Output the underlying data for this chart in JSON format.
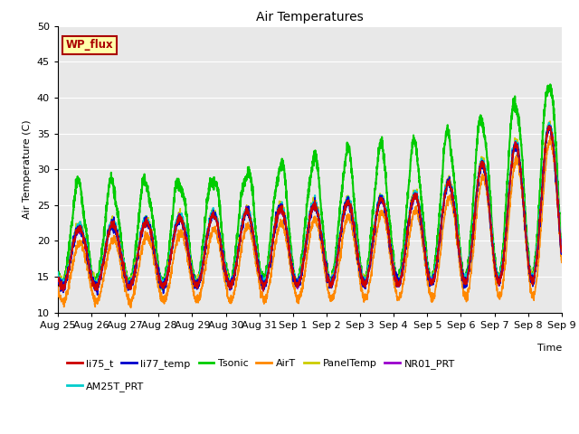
{
  "title": "Air Temperatures",
  "xlabel": "Time",
  "ylabel": "Air Temperature (C)",
  "ylim": [
    10,
    50
  ],
  "tick_labels": [
    "Aug 25",
    "Aug 26",
    "Aug 27",
    "Aug 28",
    "Aug 29",
    "Aug 30",
    "Aug 31",
    "Sep 1",
    "Sep 2",
    "Sep 3",
    "Sep 4",
    "Sep 5",
    "Sep 6",
    "Sep 7",
    "Sep 8",
    "Sep 9"
  ],
  "tick_positions": [
    0,
    1,
    2,
    3,
    4,
    5,
    6,
    7,
    8,
    9,
    10,
    11,
    12,
    13,
    14,
    15
  ],
  "series": {
    "li75_t": {
      "color": "#cc0000",
      "lw": 1.2
    },
    "li77_temp": {
      "color": "#0000cc",
      "lw": 1.2
    },
    "Tsonic": {
      "color": "#00cc00",
      "lw": 1.5
    },
    "AirT": {
      "color": "#ff8800",
      "lw": 1.2
    },
    "PanelTemp": {
      "color": "#cccc00",
      "lw": 1.2
    },
    "NR01_PRT": {
      "color": "#9900cc",
      "lw": 1.2
    },
    "AM25T_PRT": {
      "color": "#00cccc",
      "lw": 1.5
    }
  },
  "wp_flux_box": {
    "text": "WP_flux",
    "facecolor": "#ffffaa",
    "edgecolor": "#aa0000",
    "textcolor": "#aa0000"
  },
  "background_color": "#e8e8e8",
  "grid_color": "#ffffff",
  "figsize": [
    6.4,
    4.8
  ],
  "dpi": 100
}
